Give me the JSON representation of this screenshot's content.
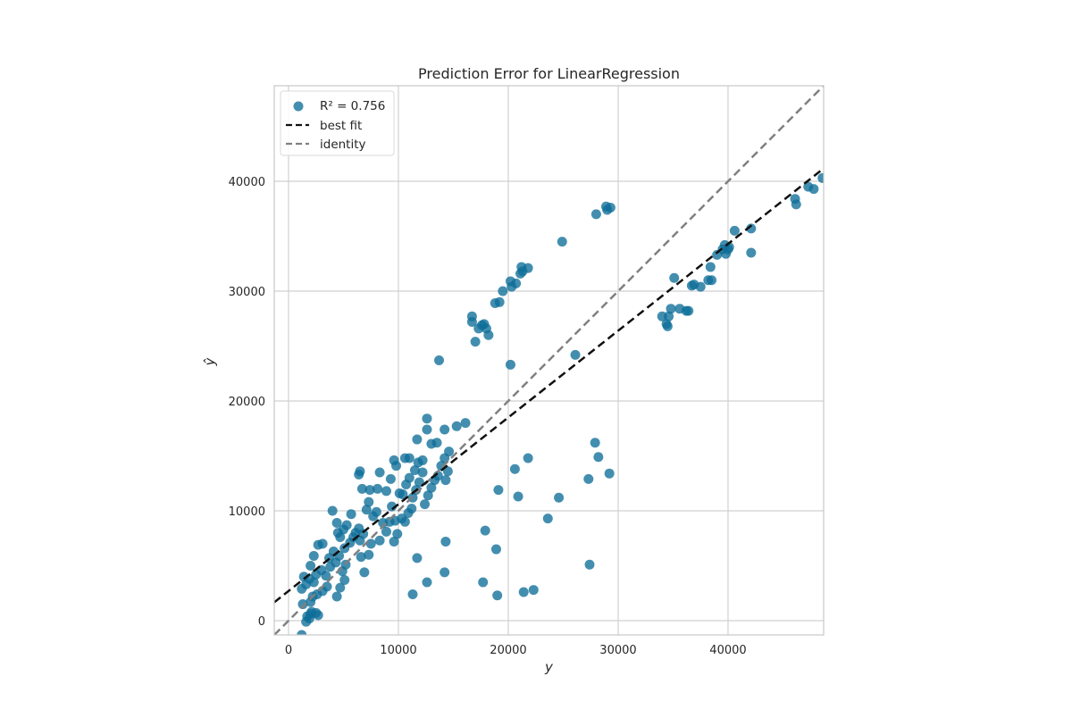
{
  "chart_data": {
    "type": "scatter",
    "title": "Prediction Error for LinearRegression",
    "xlabel": "y",
    "ylabel": "ŷ",
    "xlim": [
      -1300,
      48700
    ],
    "ylim": [
      -1300,
      48700
    ],
    "x_ticks": [
      0,
      10000,
      20000,
      30000,
      40000
    ],
    "y_ticks": [
      0,
      10000,
      20000,
      30000,
      40000
    ],
    "grid": true,
    "legend_position": "top-left",
    "colors": {
      "points": "#0e6e99",
      "best_fit": "#111111",
      "identity": "#808080",
      "grid": "#d0d0d0",
      "frame": "#c8c8c8"
    },
    "legend": {
      "r2_label": "R²  = 0.756",
      "best_fit_label": "best fit",
      "identity_label": "identity"
    },
    "best_fit": {
      "slope": 0.79,
      "intercept": 2700
    },
    "identity": {
      "slope": 1,
      "intercept": 0
    },
    "points": [
      [
        1200,
        -1300
      ],
      [
        1600,
        -100
      ],
      [
        1700,
        400
      ],
      [
        1900,
        200
      ],
      [
        2000,
        600
      ],
      [
        2100,
        800
      ],
      [
        2500,
        700
      ],
      [
        2700,
        500
      ],
      [
        1300,
        1500
      ],
      [
        2000,
        1700
      ],
      [
        2200,
        2200
      ],
      [
        2600,
        2400
      ],
      [
        1200,
        2900
      ],
      [
        1600,
        3300
      ],
      [
        2300,
        3500
      ],
      [
        3100,
        2700
      ],
      [
        3500,
        3100
      ],
      [
        1400,
        4000
      ],
      [
        1900,
        3800
      ],
      [
        2500,
        4200
      ],
      [
        3000,
        4600
      ],
      [
        3400,
        4100
      ],
      [
        3800,
        4900
      ],
      [
        4300,
        5300
      ],
      [
        4400,
        2200
      ],
      [
        4700,
        3000
      ],
      [
        5100,
        3700
      ],
      [
        4900,
        4500
      ],
      [
        5200,
        5100
      ],
      [
        4600,
        5900
      ],
      [
        2000,
        5000
      ],
      [
        2300,
        5900
      ],
      [
        2700,
        6900
      ],
      [
        3100,
        7000
      ],
      [
        3700,
        5700
      ],
      [
        4100,
        6300
      ],
      [
        4500,
        8000
      ],
      [
        4400,
        8900
      ],
      [
        4700,
        7600
      ],
      [
        5000,
        8300
      ],
      [
        5300,
        8700
      ],
      [
        5100,
        6600
      ],
      [
        5600,
        7100
      ],
      [
        5900,
        7600
      ],
      [
        5700,
        9700
      ],
      [
        6100,
        8000
      ],
      [
        6400,
        8400
      ],
      [
        6500,
        7300
      ],
      [
        6800,
        7900
      ],
      [
        6900,
        4400
      ],
      [
        6600,
        5800
      ],
      [
        7300,
        6000
      ],
      [
        7500,
        7000
      ],
      [
        7100,
        10100
      ],
      [
        7300,
        10800
      ],
      [
        7700,
        9500
      ],
      [
        8000,
        9900
      ],
      [
        8300,
        7300
      ],
      [
        8600,
        8900
      ],
      [
        8900,
        8100
      ],
      [
        9200,
        9000
      ],
      [
        9400,
        10400
      ],
      [
        9700,
        9100
      ],
      [
        9600,
        7200
      ],
      [
        9900,
        7900
      ],
      [
        10300,
        9300
      ],
      [
        10600,
        9000
      ],
      [
        10900,
        9800
      ],
      [
        11200,
        10200
      ],
      [
        10400,
        11500
      ],
      [
        10700,
        12400
      ],
      [
        11000,
        13000
      ],
      [
        11300,
        11200
      ],
      [
        11600,
        11900
      ],
      [
        11900,
        12600
      ],
      [
        12200,
        13500
      ],
      [
        12400,
        10600
      ],
      [
        12700,
        11400
      ],
      [
        13000,
        12100
      ],
      [
        13300,
        12800
      ],
      [
        13600,
        13200
      ],
      [
        13900,
        14100
      ],
      [
        14300,
        12800
      ],
      [
        14500,
        13600
      ],
      [
        14200,
        14800
      ],
      [
        6400,
        13300
      ],
      [
        6500,
        13600
      ],
      [
        6700,
        12000
      ],
      [
        7400,
        11900
      ],
      [
        8100,
        12000
      ],
      [
        8300,
        13500
      ],
      [
        8900,
        11800
      ],
      [
        9300,
        12900
      ],
      [
        9600,
        14600
      ],
      [
        9800,
        14100
      ],
      [
        10100,
        11600
      ],
      [
        10600,
        14800
      ],
      [
        11000,
        14800
      ],
      [
        11500,
        13700
      ],
      [
        11700,
        16500
      ],
      [
        11800,
        14400
      ],
      [
        12200,
        14600
      ],
      [
        12600,
        17400
      ],
      [
        12600,
        18400
      ],
      [
        13000,
        16100
      ],
      [
        13500,
        16200
      ],
      [
        14200,
        17400
      ],
      [
        14600,
        15400
      ],
      [
        15300,
        17700
      ],
      [
        16100,
        18000
      ],
      [
        13700,
        23700
      ],
      [
        17000,
        25400
      ],
      [
        17300,
        26600
      ],
      [
        16700,
        27200
      ],
      [
        16700,
        27700
      ],
      [
        17600,
        26900
      ],
      [
        18000,
        26600
      ],
      [
        18200,
        26000
      ],
      [
        17800,
        27000
      ],
      [
        18800,
        28900
      ],
      [
        19200,
        29000
      ],
      [
        19500,
        30000
      ],
      [
        20200,
        30900
      ],
      [
        20300,
        30400
      ],
      [
        20700,
        30700
      ],
      [
        21100,
        31600
      ],
      [
        21200,
        32200
      ],
      [
        21300,
        31800
      ],
      [
        21800,
        32100
      ],
      [
        20200,
        23300
      ],
      [
        24900,
        34500
      ],
      [
        26100,
        24200
      ],
      [
        28000,
        37000
      ],
      [
        28900,
        37700
      ],
      [
        29000,
        37400
      ],
      [
        29300,
        37600
      ],
      [
        4000,
        10000
      ],
      [
        14300,
        7200
      ],
      [
        14200,
        4400
      ],
      [
        11700,
        5700
      ],
      [
        11300,
        2400
      ],
      [
        12600,
        3500
      ],
      [
        17700,
        3500
      ],
      [
        17900,
        8200
      ],
      [
        18900,
        6500
      ],
      [
        19000,
        2300
      ],
      [
        19100,
        11900
      ],
      [
        20600,
        13800
      ],
      [
        20900,
        11300
      ],
      [
        21400,
        2600
      ],
      [
        21800,
        14800
      ],
      [
        22300,
        2800
      ],
      [
        23600,
        9300
      ],
      [
        24600,
        11200
      ],
      [
        27300,
        12900
      ],
      [
        27400,
        5100
      ],
      [
        27900,
        16200
      ],
      [
        28200,
        14900
      ],
      [
        29200,
        13400
      ],
      [
        34000,
        27700
      ],
      [
        34400,
        27000
      ],
      [
        34500,
        26800
      ],
      [
        34600,
        27700
      ],
      [
        34800,
        28400
      ],
      [
        35100,
        31200
      ],
      [
        35600,
        28400
      ],
      [
        36200,
        28200
      ],
      [
        36400,
        28200
      ],
      [
        36700,
        30500
      ],
      [
        36900,
        30600
      ],
      [
        37500,
        30400
      ],
      [
        38200,
        31000
      ],
      [
        38400,
        32200
      ],
      [
        38500,
        31000
      ],
      [
        39000,
        33300
      ],
      [
        39500,
        33800
      ],
      [
        39700,
        34200
      ],
      [
        39800,
        33400
      ],
      [
        40000,
        33800
      ],
      [
        40100,
        34000
      ],
      [
        40600,
        35500
      ],
      [
        42100,
        33500
      ],
      [
        42100,
        35700
      ],
      [
        46100,
        38400
      ],
      [
        46200,
        37900
      ],
      [
        47300,
        39500
      ],
      [
        47800,
        39300
      ],
      [
        48600,
        40300
      ]
    ]
  }
}
